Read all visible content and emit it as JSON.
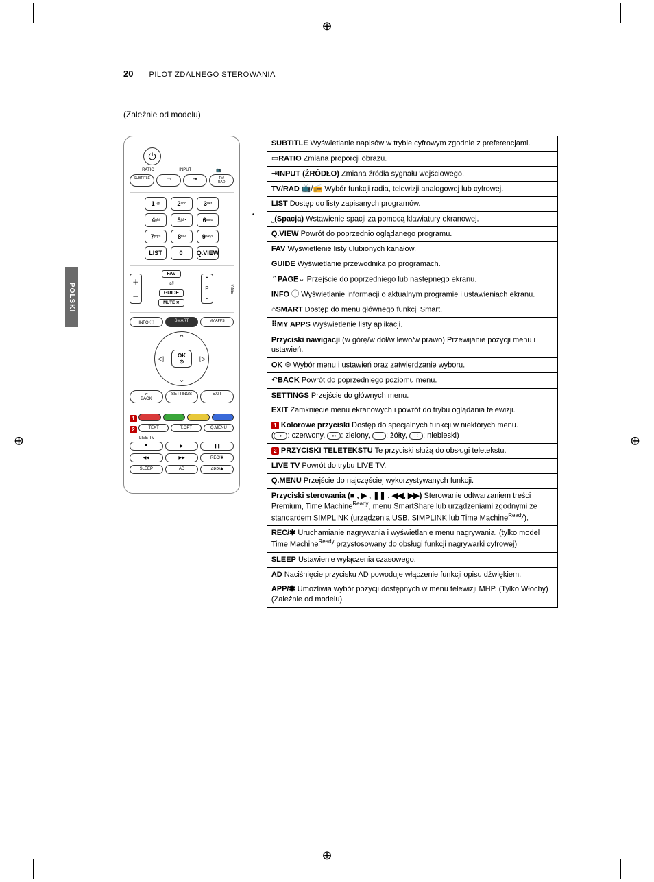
{
  "crop_mark": "⊕",
  "header": {
    "page_number": "20",
    "title": "PILOT ZDALNEGO STEROWANIA"
  },
  "subnote": "(Zależnie od modelu)",
  "side_tab": "POLSKI",
  "colors": {
    "badge_bg": "#c00000",
    "red": "#d93a3a",
    "green": "#3aa63a",
    "yellow": "#e8c83a",
    "blue": "#3a6ad9",
    "side_tab_bg": "#6b6b6b"
  },
  "remote": {
    "top_labels": [
      "RATIO",
      "INPUT",
      ""
    ],
    "top_row": [
      "SUBTITLE",
      "▭",
      "⇥",
      "TV/\nRAD"
    ],
    "numpad": [
      [
        "1 .,@",
        "2 abc",
        "3 def"
      ],
      [
        "4 ghi",
        "5 jkl •",
        "6 mno"
      ],
      [
        "7 pqrs",
        "8 tuv",
        "9 wxyz"
      ],
      [
        "LIST",
        "0 ⎵",
        "Q.VIEW"
      ]
    ],
    "fav": "FAV",
    "guide": "GUIDE",
    "mute": "MUTE ✕",
    "p": "P",
    "page": "PAGE",
    "info": "INFO ⓘ",
    "smart": "SMART",
    "myapps": "MY APPS",
    "ok": "OK\n⊙",
    "back": "BACK",
    "settings": "SETTINGS",
    "exit": "EXIT",
    "text_row": [
      "TEXT",
      "T.OPT",
      "Q.MENU"
    ],
    "live": "LIVE TV",
    "playback": [
      "■",
      "▶",
      "❚❚"
    ],
    "playback2": [
      "◀◀",
      "▶▶",
      "REC/✱"
    ],
    "bottom_row": [
      "SLEEP",
      "AD",
      "APP/✱"
    ]
  },
  "desc": {
    "group1": [
      {
        "b": "SUBTITLE",
        "t": " Wyświetlanie napisów w trybie cyfrowym zgodnie z preferencjami."
      },
      {
        "pre_icon": "▭ ",
        "b": "RATIO",
        "t": " Zmiana proporcji obrazu."
      },
      {
        "pre_icon": "⇥ ",
        "b": "INPUT (ŹRÓDŁO)",
        "t": " Zmiana źródła sygnału wejściowego."
      },
      {
        "b": "TV/RAD ",
        "post_icon": "📺/📻",
        "t": "  Wybór funkcji radia, telewizji analogowej lub cyfrowej."
      }
    ],
    "group2": [
      {
        "b": "LIST",
        "t": " Dostęp do listy zapisanych programów."
      },
      {
        "pre_icon": "⎵ ",
        "b": "(Spacja)",
        "t": " Wstawienie spacji za pomocą klawiatury ekranowej."
      },
      {
        "b": "Q.VIEW",
        "t": " Powrót do poprzednio oglądanego programu."
      },
      {
        "b": "FAV",
        "t": " Wyświetlenie listy ulubionych kanałów."
      },
      {
        "b": "GUIDE",
        "t": " Wyświetlanie przewodnika po programach."
      },
      {
        "pre_icon": "⌃ ",
        "b": "PAGE",
        "post_icon": " ⌄",
        "t": "  Przejście do poprzedniego lub następnego ekranu."
      }
    ],
    "group3": [
      {
        "b": "INFO ",
        "post_icon": "ⓘ",
        "t": " Wyświetlanie informacji o aktualnym programie i ustawieniach ekranu."
      },
      {
        "pre_icon": "⌂ ",
        "b": "SMART",
        "t": " Dostęp do menu głównego funkcji Smart."
      },
      {
        "pre_icon": "⠿ ",
        "b": "MY APPS",
        "t": " Wyświetlenie listy aplikacji."
      },
      {
        "b": "Przyciski nawigacji",
        "t": " (w górę/w dół/w lewo/w prawo) Przewijanie pozycji menu i ustawień."
      },
      {
        "b": "OK ",
        "post_icon": "⊙",
        "t": " Wybór menu i ustawień oraz zatwierdzanie wyboru."
      },
      {
        "pre_icon": "↶ ",
        "b": "BACK",
        "t": " Powrót do poprzedniego poziomu menu."
      },
      {
        "b": "SETTINGS",
        "t": " Przejście do głównych menu."
      },
      {
        "b": "EXIT",
        "t": " Zamknięcie menu ekranowych i powrót do trybu oglądania telewizji."
      }
    ],
    "group4": [
      {
        "badge": "1",
        "b": " Kolorowe przyciski",
        "t": " Dostęp do specjalnych funkcji w niektórych menu.",
        "color_legend": true
      },
      {
        "badge": "2",
        "b": " PRZYCISKI TELETEKSTU",
        "t": " Te przyciski służą do obsługi teletekstu."
      },
      {
        "b": "LIVE TV",
        "t": " Powrót do trybu LIVE TV."
      },
      {
        "b": "Q.MENU",
        "t": " Przejście do najczęściej wykorzystywanych funkcji."
      },
      {
        "b": "Przyciski sterowania (■ , ▶ , ❚❚ , ◀◀, ▶▶)",
        "t": " Sterowanie odtwarzaniem treści Premium, Time Machine",
        "sup": "Ready",
        "t2": ", menu SmartShare lub urządzeniami zgodnymi ze standardem SIMPLINK (urządzenia USB, SIMPLINK lub Time Machine",
        "sup2": "Ready",
        "t3": ")."
      },
      {
        "b": "REC/✱",
        "t": "  Uruchamianie nagrywania i wyświetlanie menu nagrywania. (tylko model Time Machine",
        "sup": "Ready",
        "t2": " przystosowany do obsługi funkcji nagrywarki cyfrowej)"
      },
      {
        "b": "SLEEP",
        "t": " Ustawienie wyłączenia czasowego."
      },
      {
        "b": "AD",
        "t": " Naciśnięcie przycisku AD powoduje włączenie funkcji opisu dźwiękiem."
      },
      {
        "b": "APP/✱",
        "t": " Umożliwia wybór pozycji dostępnych w menu telewizji MHP. (Tylko Włochy) (Zależnie od modelu)"
      }
    ],
    "color_legend": {
      "prefix": "(",
      "red": ": czerwony, ",
      "green": ": zielony, ",
      "yellow": ": żółty, ",
      "blue": ": niebieski)",
      "dot1": "•",
      "dot2": "••",
      "dot3": "⋯",
      "dot4": "∷"
    }
  }
}
